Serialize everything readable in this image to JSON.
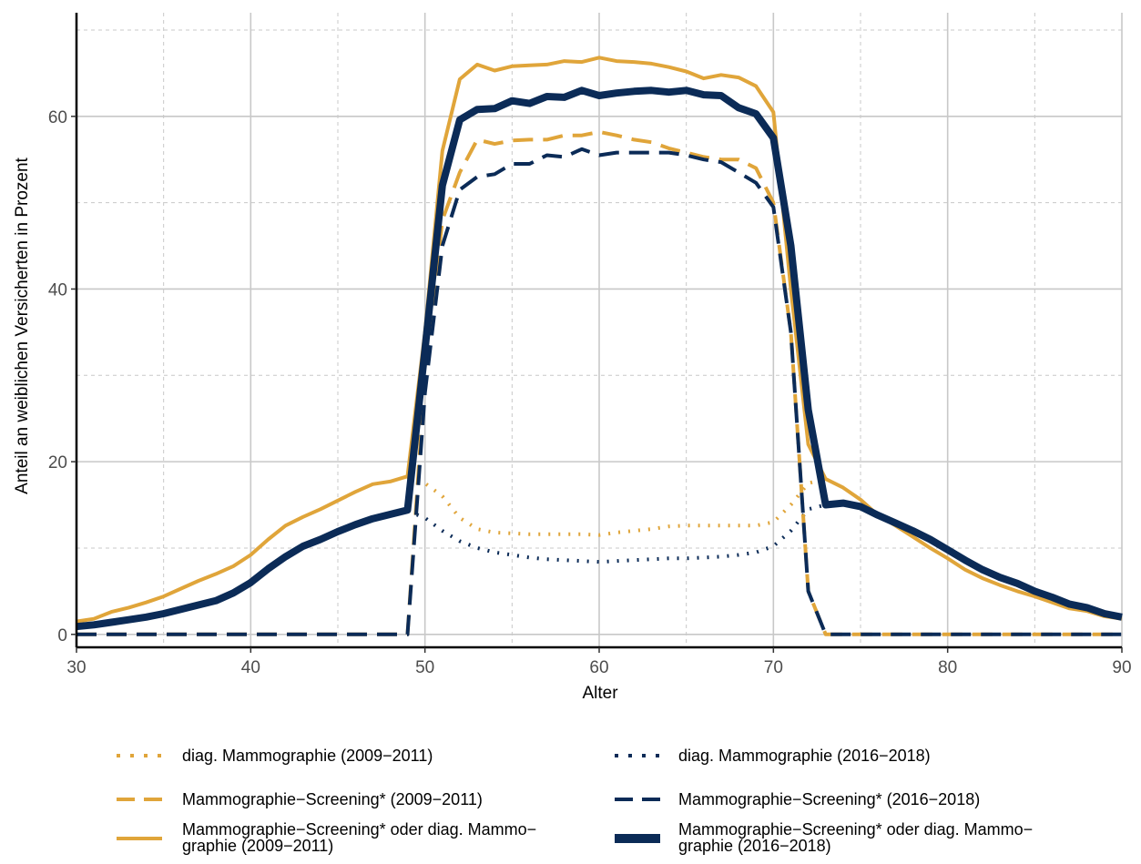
{
  "chart_data": {
    "type": "line",
    "xlabel": "Alter",
    "ylabel": "Anteil an weiblichen Versicherten in Prozent",
    "xlim": [
      30,
      90
    ],
    "ylim": [
      -1.5,
      72
    ],
    "x_ticks": [
      30,
      40,
      50,
      60,
      70,
      80,
      90
    ],
    "y_ticks": [
      0,
      20,
      40,
      60
    ],
    "grid": true,
    "legend_position": "bottom",
    "colors": {
      "gold": "#e0a53a",
      "navy": "#0b2b57",
      "major_grid": "#c8c8c8",
      "minor_grid": "#c8c8c8"
    },
    "series": [
      {
        "name": "diag. Mammographie (2009−2011)",
        "color": "#e0a53a",
        "style": "dotted",
        "width": "normal",
        "points": [
          [
            49,
            18.2
          ],
          [
            50,
            17.5
          ],
          [
            51,
            16
          ],
          [
            52,
            13.5
          ],
          [
            53,
            12.2
          ],
          [
            54,
            11.8
          ],
          [
            55,
            11.7
          ],
          [
            56,
            11.6
          ],
          [
            57,
            11.6
          ],
          [
            58,
            11.6
          ],
          [
            59,
            11.6
          ],
          [
            60,
            11.5
          ],
          [
            61,
            11.8
          ],
          [
            62,
            12
          ],
          [
            63,
            12.2
          ],
          [
            64,
            12.5
          ],
          [
            65,
            12.6
          ],
          [
            66,
            12.6
          ],
          [
            67,
            12.6
          ],
          [
            68,
            12.6
          ],
          [
            69,
            12.6
          ],
          [
            70,
            13
          ],
          [
            71,
            15
          ],
          [
            72,
            17.5
          ],
          [
            73,
            18
          ]
        ]
      },
      {
        "name": "diag. Mammographie (2016−2018)",
        "color": "#0b2b57",
        "style": "dotted",
        "width": "normal",
        "points": [
          [
            49,
            14.3
          ],
          [
            50,
            13.5
          ],
          [
            51,
            12
          ],
          [
            52,
            10.8
          ],
          [
            53,
            10
          ],
          [
            54,
            9.5
          ],
          [
            55,
            9.2
          ],
          [
            56,
            8.9
          ],
          [
            57,
            8.7
          ],
          [
            58,
            8.6
          ],
          [
            59,
            8.5
          ],
          [
            60,
            8.4
          ],
          [
            61,
            8.5
          ],
          [
            62,
            8.6
          ],
          [
            63,
            8.7
          ],
          [
            64,
            8.8
          ],
          [
            65,
            8.8
          ],
          [
            66,
            8.9
          ],
          [
            67,
            9
          ],
          [
            68,
            9.2
          ],
          [
            69,
            9.5
          ],
          [
            70,
            10.2
          ],
          [
            71,
            12
          ],
          [
            72,
            14.5
          ],
          [
            73,
            15
          ]
        ]
      },
      {
        "name": "Mammographie−Screening* (2009−2011)",
        "color": "#e0a53a",
        "style": "dashed",
        "width": "normal",
        "points": [
          [
            30,
            0
          ],
          [
            48,
            0
          ],
          [
            49,
            0
          ],
          [
            50,
            30
          ],
          [
            51,
            48
          ],
          [
            52,
            53.5
          ],
          [
            53,
            57.3
          ],
          [
            54,
            56.8
          ],
          [
            55,
            57.2
          ],
          [
            56,
            57.3
          ],
          [
            57,
            57.3
          ],
          [
            58,
            57.8
          ],
          [
            59,
            57.8
          ],
          [
            60,
            58.2
          ],
          [
            61,
            57.8
          ],
          [
            62,
            57.3
          ],
          [
            63,
            57
          ],
          [
            64,
            56.3
          ],
          [
            65,
            55.8
          ],
          [
            66,
            55.3
          ],
          [
            67,
            55
          ],
          [
            68,
            55
          ],
          [
            69,
            54
          ],
          [
            70,
            50
          ],
          [
            71,
            35
          ],
          [
            72,
            5
          ],
          [
            73,
            0
          ],
          [
            90,
            0
          ]
        ]
      },
      {
        "name": "Mammographie−Screening* (2016−2018)",
        "color": "#0b2b57",
        "style": "dashed",
        "width": "normal",
        "points": [
          [
            30,
            0
          ],
          [
            48,
            0
          ],
          [
            49,
            0
          ],
          [
            50,
            28
          ],
          [
            51,
            45
          ],
          [
            52,
            51.5
          ],
          [
            53,
            53
          ],
          [
            54,
            53.3
          ],
          [
            55,
            54.5
          ],
          [
            56,
            54.5
          ],
          [
            57,
            55.5
          ],
          [
            58,
            55.3
          ],
          [
            59,
            56.2
          ],
          [
            60,
            55.5
          ],
          [
            61,
            55.8
          ],
          [
            62,
            55.8
          ],
          [
            63,
            55.8
          ],
          [
            64,
            55.8
          ],
          [
            65,
            55.5
          ],
          [
            66,
            55
          ],
          [
            67,
            54.7
          ],
          [
            68,
            53.5
          ],
          [
            69,
            52.3
          ],
          [
            70,
            49.5
          ],
          [
            71,
            35
          ],
          [
            72,
            5
          ],
          [
            73,
            0
          ],
          [
            90,
            0
          ]
        ]
      },
      {
        "name": "Mammographie−Screening* oder diag. Mammo−graphie (2009−2011)",
        "color": "#e0a53a",
        "style": "solid",
        "width": "normal",
        "points": [
          [
            30,
            1.5
          ],
          [
            31,
            1.8
          ],
          [
            32,
            2.6
          ],
          [
            33,
            3.1
          ],
          [
            34,
            3.7
          ],
          [
            35,
            4.4
          ],
          [
            36,
            5.3
          ],
          [
            37,
            6.2
          ],
          [
            38,
            7
          ],
          [
            39,
            7.9
          ],
          [
            40,
            9.2
          ],
          [
            41,
            11
          ],
          [
            42,
            12.6
          ],
          [
            43,
            13.6
          ],
          [
            44,
            14.5
          ],
          [
            45,
            15.5
          ],
          [
            46,
            16.5
          ],
          [
            47,
            17.4
          ],
          [
            48,
            17.7
          ],
          [
            49,
            18.3
          ],
          [
            50,
            35
          ],
          [
            51,
            56
          ],
          [
            52,
            64.3
          ],
          [
            53,
            66
          ],
          [
            54,
            65.3
          ],
          [
            55,
            65.8
          ],
          [
            56,
            65.9
          ],
          [
            57,
            66
          ],
          [
            58,
            66.4
          ],
          [
            59,
            66.3
          ],
          [
            60,
            66.8
          ],
          [
            61,
            66.4
          ],
          [
            62,
            66.3
          ],
          [
            63,
            66.1
          ],
          [
            64,
            65.7
          ],
          [
            65,
            65.2
          ],
          [
            66,
            64.4
          ],
          [
            67,
            64.8
          ],
          [
            68,
            64.5
          ],
          [
            69,
            63.5
          ],
          [
            70,
            60.5
          ],
          [
            71,
            40
          ],
          [
            72,
            22
          ],
          [
            73,
            18
          ],
          [
            74,
            17
          ],
          [
            75,
            15.6
          ],
          [
            76,
            13.8
          ],
          [
            77,
            12.6
          ],
          [
            78,
            11.3
          ],
          [
            79,
            10
          ],
          [
            80,
            8.8
          ],
          [
            81,
            7.5
          ],
          [
            82,
            6.5
          ],
          [
            83,
            5.7
          ],
          [
            84,
            5
          ],
          [
            85,
            4.4
          ],
          [
            86,
            3.7
          ],
          [
            87,
            3
          ],
          [
            88,
            2.7
          ],
          [
            89,
            2.1
          ],
          [
            90,
            1.8
          ]
        ]
      },
      {
        "name": "Mammographie−Screening* oder diag. Mammo−graphie (2016−2018)",
        "color": "#0b2b57",
        "style": "solid",
        "width": "thick",
        "points": [
          [
            30,
            0.9
          ],
          [
            31,
            1.1
          ],
          [
            32,
            1.4
          ],
          [
            33,
            1.7
          ],
          [
            34,
            2
          ],
          [
            35,
            2.4
          ],
          [
            36,
            2.9
          ],
          [
            37,
            3.4
          ],
          [
            38,
            3.9
          ],
          [
            39,
            4.8
          ],
          [
            40,
            6
          ],
          [
            41,
            7.6
          ],
          [
            42,
            9
          ],
          [
            43,
            10.2
          ],
          [
            44,
            11
          ],
          [
            45,
            11.9
          ],
          [
            46,
            12.7
          ],
          [
            47,
            13.4
          ],
          [
            48,
            13.9
          ],
          [
            49,
            14.4
          ],
          [
            50,
            33
          ],
          [
            51,
            52
          ],
          [
            52,
            59.6
          ],
          [
            53,
            60.8
          ],
          [
            54,
            60.9
          ],
          [
            55,
            61.8
          ],
          [
            56,
            61.5
          ],
          [
            57,
            62.3
          ],
          [
            58,
            62.2
          ],
          [
            59,
            63
          ],
          [
            60,
            62.4
          ],
          [
            61,
            62.7
          ],
          [
            62,
            62.9
          ],
          [
            63,
            63
          ],
          [
            64,
            62.8
          ],
          [
            65,
            63
          ],
          [
            66,
            62.5
          ],
          [
            67,
            62.4
          ],
          [
            68,
            61
          ],
          [
            69,
            60.3
          ],
          [
            70,
            57.5
          ],
          [
            71,
            45
          ],
          [
            72,
            26
          ],
          [
            73,
            15
          ],
          [
            74,
            15.2
          ],
          [
            75,
            14.8
          ],
          [
            76,
            13.8
          ],
          [
            77,
            12.9
          ],
          [
            78,
            12
          ],
          [
            79,
            11
          ],
          [
            80,
            9.8
          ],
          [
            81,
            8.6
          ],
          [
            82,
            7.5
          ],
          [
            83,
            6.6
          ],
          [
            84,
            5.9
          ],
          [
            85,
            5
          ],
          [
            86,
            4.3
          ],
          [
            87,
            3.5
          ],
          [
            88,
            3.1
          ],
          [
            89,
            2.4
          ],
          [
            90,
            2
          ]
        ]
      }
    ]
  },
  "legend": {
    "left": [
      {
        "lines": [
          "diag. Mammographie (2009−2011)"
        ]
      },
      {
        "lines": [
          "Mammographie−Screening* (2009−2011)"
        ]
      },
      {
        "lines": [
          "Mammographie−Screening* oder diag. Mammo−",
          "graphie (2009−2011)"
        ]
      }
    ],
    "right": [
      {
        "lines": [
          "diag. Mammographie (2016−2018)"
        ]
      },
      {
        "lines": [
          "Mammographie−Screening* (2016−2018)"
        ]
      },
      {
        "lines": [
          "Mammographie−Screening* oder diag. Mammo−",
          "graphie (2016−2018)"
        ]
      }
    ]
  }
}
